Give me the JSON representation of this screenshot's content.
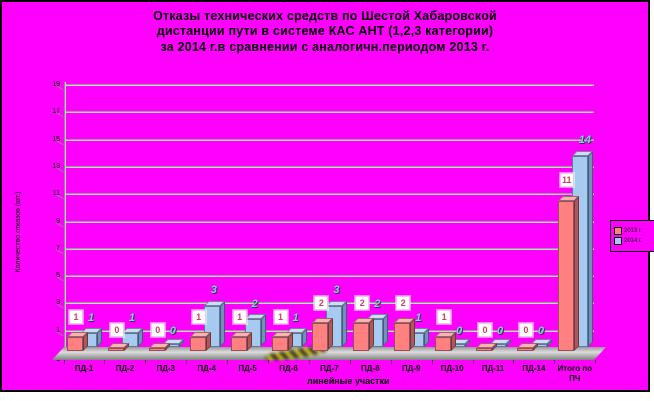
{
  "chart": {
    "title_lines": [
      "Отказы технических средств по Шестой Хабаровской",
      "дистанции пути  в системе КАС АНТ (1,2,3 категории)",
      "за 2014 г.в сравнении с аналогичн.периодом 2013 г."
    ],
    "ylabel": "Количество отказов (шт.)",
    "xlabel": "линейные участки"
  },
  "legend": {
    "items": [
      {
        "label": "2013 г.",
        "color": "#ff8080"
      },
      {
        "label": "2014 г.",
        "color": "#a6caf0"
      }
    ]
  },
  "colors": {
    "background": "#ff00ff",
    "frame_border": "#000000",
    "series_2013": "#ff8080",
    "series_2013_top": "#ffb0b0",
    "series_2013_side": "#b05858",
    "series_2014": "#a6caf0",
    "series_2014_top": "#c9def7",
    "series_2014_side": "#7191bd",
    "gridline": "#7d7d7d",
    "boxed_label_text": "#cb4163",
    "blue_label_text": "#9cc4ef"
  },
  "chart_data": {
    "type": "bar",
    "style": "3d-column",
    "title": "Отказы технических средств по Шестой Хабаровской дистанции пути в системе КАС АНТ (1,2,3 категории) за 2014 г.в сравнении с аналогичн.периодом 2013 г.",
    "categories": [
      "ПД-1",
      "ПД-2",
      "ПД-3",
      "ПД-4",
      "ПД-5",
      "ПД-6",
      "ПД-7",
      "ПД-8",
      "ПД-9",
      "ПД-10",
      "ПД-11",
      "ПД-14",
      "Итого по ПЧ"
    ],
    "series": [
      {
        "name": "2013 г.",
        "color": "#ff8080",
        "values": [
          1,
          0,
          0,
          1,
          1,
          1,
          2,
          2,
          2,
          1,
          0,
          0,
          11
        ]
      },
      {
        "name": "2014 г.",
        "color": "#a6caf0",
        "values": [
          1,
          1,
          0,
          3,
          2,
          1,
          3,
          2,
          1,
          0,
          0,
          0,
          14
        ]
      }
    ],
    "xlabel": "линейные участки",
    "ylabel": "Количество отказов (шт.)",
    "ylim": [
      -1,
      19
    ],
    "yticks": [
      19,
      17,
      15,
      13,
      11,
      9,
      7,
      5,
      3,
      1,
      -1
    ],
    "grid": true,
    "legend_position": "right",
    "plot_background": "#ff00ff",
    "data_labels": true
  }
}
